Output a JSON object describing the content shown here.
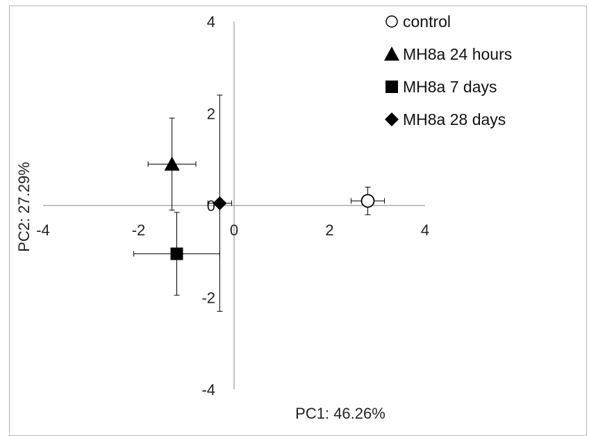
{
  "chart_data": {
    "type": "scatter",
    "title": "",
    "xlabel": "PC1:  46.26%",
    "ylabel": "PC2: 27.29%",
    "xlim": [
      -4,
      4
    ],
    "ylim": [
      -4,
      4
    ],
    "x_ticks": [
      {
        "value": -4,
        "label": "-4"
      },
      {
        "value": -2,
        "label": "-2"
      },
      {
        "value": 0,
        "label": "0"
      },
      {
        "value": 2,
        "label": "2"
      },
      {
        "value": 4,
        "label": "4"
      }
    ],
    "y_ticks": [
      {
        "value": 4,
        "label": "4"
      },
      {
        "value": 2,
        "label": "2"
      },
      {
        "value": 0,
        "label": "0"
      },
      {
        "value": -2,
        "label": "-2"
      },
      {
        "value": -4,
        "label": "-4"
      }
    ],
    "grid": false,
    "legend_position": "top-right",
    "series": [
      {
        "name": "control",
        "marker": "circle-open",
        "x": 2.8,
        "y": 0.1,
        "x_err": 0.35,
        "y_err": 0.3
      },
      {
        "name": "MH8a 24 hours",
        "marker": "triangle",
        "x": -1.3,
        "y": 0.9,
        "x_err": 0.5,
        "y_err": 1.0
      },
      {
        "name": "MH8a 7 days",
        "marker": "square",
        "x": -1.2,
        "y": -1.05,
        "x_err": 0.9,
        "y_err": 0.9
      },
      {
        "name": "MH8a 28 days",
        "marker": "diamond",
        "x": -0.3,
        "y": 0.05,
        "x_err": 0.25,
        "y_err": 2.35
      }
    ],
    "colors": {
      "markers": "#000000",
      "axes": "#9a9a9a",
      "error_bars": "#000000"
    }
  }
}
